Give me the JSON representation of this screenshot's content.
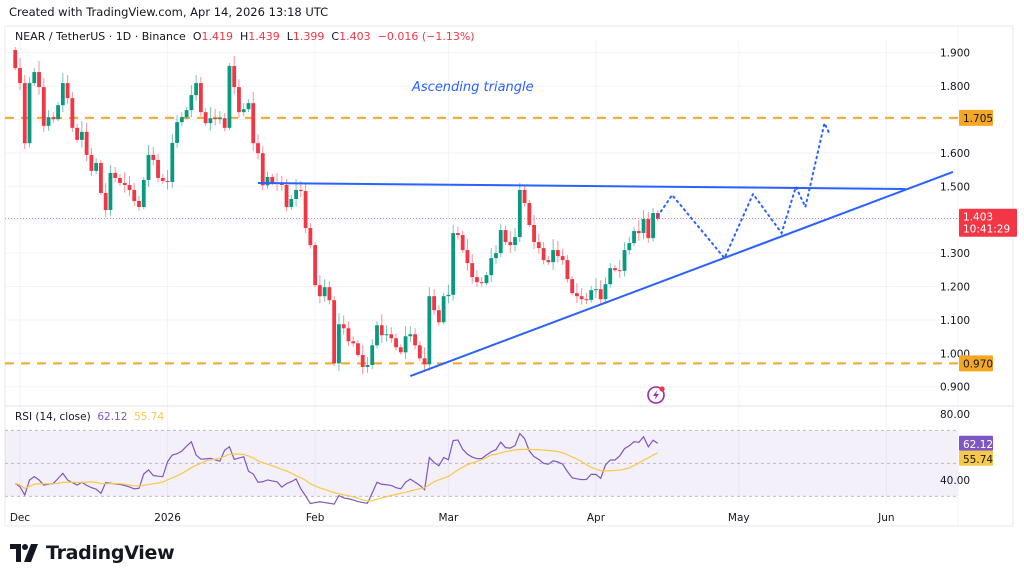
{
  "header": {
    "created": "Created with TradingView.com, Apr 14, 2026 13:18 UTC"
  },
  "legend": {
    "symbol": "NEAR / TetherUS · 1D · Binance",
    "o_label": "O",
    "o": "1.419",
    "h_label": "H",
    "h": "1.439",
    "l_label": "L",
    "l": "1.399",
    "c_label": "C",
    "c": "1.403",
    "change": "−0.016 (−1.13%)"
  },
  "rsi_legend": {
    "label": "RSI (14, close)",
    "value": "62.12",
    "ma_value": "55.74"
  },
  "annotation": {
    "text": "Ascending triangle"
  },
  "price_axis": {
    "ticks": [
      "1.900",
      "1.800",
      "1.600",
      "1.500",
      "1.300",
      "1.200",
      "1.100",
      "1.000",
      "0.900"
    ],
    "tick_values": [
      1.9,
      1.8,
      1.6,
      1.5,
      1.3,
      1.2,
      1.1,
      1.0,
      0.9
    ],
    "resistance_tag": "1.705",
    "support_tag": "0.970",
    "last_price_tag": "1.403",
    "countdown": "10:41:29"
  },
  "rsi_axis": {
    "ticks": [
      "80.00",
      "40.00"
    ],
    "tick_values": [
      80,
      40
    ],
    "rsi_tag": "62.12",
    "ma_tag": "55.74",
    "bands": [
      70,
      50,
      30
    ]
  },
  "time_axis": {
    "labels": [
      "Dec",
      "2026",
      "Feb",
      "Mar",
      "Apr",
      "May",
      "Jun"
    ],
    "dates": [
      "2025-12-01",
      "2026-01-01",
      "2026-02-01",
      "2026-03-01",
      "2026-04-01",
      "2026-05-01",
      "2026-06-01"
    ]
  },
  "colors": {
    "up": "#089981",
    "down": "#f23645",
    "level": "#f5a623",
    "trendline": "#2962ff",
    "rsi": "#7e57c2",
    "rsi_ma": "#f7c948",
    "last_price": "#f23645"
  },
  "levels": {
    "resistance": 1.705,
    "support": 0.97,
    "last_price": 1.403
  },
  "chart_data": {
    "type": "candlestick",
    "symbol": "NEAR / TetherUS",
    "interval": "1D",
    "last_date": "2026-04-14",
    "first_open": 1.908,
    "closes": [
      1.854,
      1.809,
      1.629,
      1.809,
      1.842,
      1.797,
      1.681,
      1.707,
      1.701,
      1.743,
      1.809,
      1.764,
      1.675,
      1.639,
      1.663,
      1.594,
      1.546,
      1.57,
      1.48,
      1.429,
      1.54,
      1.525,
      1.51,
      1.504,
      1.489,
      1.456,
      1.438,
      1.519,
      1.594,
      1.579,
      1.525,
      1.516,
      1.513,
      1.63,
      1.692,
      1.707,
      1.728,
      1.773,
      1.809,
      1.722,
      1.689,
      1.704,
      1.701,
      1.704,
      1.675,
      1.86,
      1.797,
      1.722,
      1.731,
      1.749,
      1.629,
      1.599,
      1.503,
      1.528,
      1.51,
      1.507,
      1.504,
      1.438,
      1.462,
      1.489,
      1.486,
      1.375,
      1.324,
      1.204,
      1.171,
      1.198,
      1.159,
      0.97,
      1.087,
      1.075,
      1.036,
      1.03,
      0.995,
      0.959,
      0.965,
      1.024,
      1.084,
      1.054,
      1.057,
      1.045,
      1.018,
      1.003,
      1.051,
      1.057,
      1.024,
      0.985,
      0.967,
      1.171,
      1.129,
      1.093,
      1.171,
      1.175,
      1.36,
      1.354,
      1.309,
      1.27,
      1.228,
      1.213,
      1.21,
      1.234,
      1.285,
      1.3,
      1.369,
      1.333,
      1.324,
      1.348,
      1.489,
      1.45,
      1.384,
      1.333,
      1.315,
      1.279,
      1.273,
      1.309,
      1.291,
      1.279,
      1.222,
      1.18,
      1.171,
      1.162,
      1.16,
      1.189,
      1.192,
      1.162,
      1.207,
      1.255,
      1.249,
      1.247,
      1.309,
      1.33,
      1.366,
      1.36,
      1.402,
      1.345,
      1.42,
      1.403
    ],
    "rsi": [
      37.8,
      35.8,
      30.8,
      39.9,
      41.9,
      39.9,
      36.8,
      37.3,
      37.8,
      40.8,
      43.9,
      39.9,
      38.3,
      36.8,
      38.5,
      36.6,
      35.3,
      34.3,
      31.8,
      38.3,
      37.9,
      37.5,
      37.2,
      36.5,
      35.7,
      34.5,
      34.8,
      43.5,
      46,
      42.6,
      42.2,
      41.9,
      51,
      55,
      55.8,
      57.4,
      60.4,
      63,
      55,
      52.5,
      52.7,
      53,
      52.1,
      51.3,
      58,
      60,
      52.4,
      53.2,
      54,
      45.2,
      43.5,
      38.5,
      38.8,
      39.9,
      39.3,
      38.8,
      35.6,
      37.7,
      38.9,
      40.5,
      34.5,
      30.2,
      25.6,
      26.2,
      26.7,
      26.2,
      25.8,
      25.3,
      30.4,
      29,
      28.5,
      27.8,
      26.8,
      26.2,
      25.8,
      32,
      38.5,
      37.3,
      37,
      36.6,
      35.2,
      34.5,
      38.5,
      40.4,
      38.5,
      36.6,
      34,
      53.5,
      50.5,
      48.5,
      53.5,
      52.2,
      63.8,
      64.1,
      58.5,
      55.5,
      53.8,
      52.8,
      52.9,
      55,
      57,
      58.3,
      62.8,
      59.5,
      59.2,
      60.8,
      68,
      65,
      57.5,
      54,
      52.3,
      50,
      49.4,
      51.5,
      50.8,
      49.5,
      45,
      41.2,
      40.6,
      40.1,
      40.2,
      43.3,
      43.3,
      40.9,
      49,
      52,
      52,
      54.5,
      58.9,
      60.6,
      63.1,
      62.7,
      66.1,
      60,
      64,
      62.1
    ],
    "rsi_ma_length": 14,
    "drawings": {
      "resistance_line": [
        [
          "2026-01-20",
          1.51
        ],
        [
          "2026-06-05",
          1.492
        ]
      ],
      "support_trendline": [
        [
          "2026-02-21",
          0.932
        ],
        [
          "2026-06-15",
          1.543
        ]
      ],
      "projected_path": [
        [
          "2026-04-14",
          1.411
        ],
        [
          "2026-04-17",
          1.474
        ],
        [
          "2026-04-28",
          1.285
        ],
        [
          "2026-05-04",
          1.477
        ],
        [
          "2026-05-10",
          1.36
        ],
        [
          "2026-05-13",
          1.498
        ],
        [
          "2026-05-15",
          1.438
        ],
        [
          "2026-05-19",
          1.689
        ],
        [
          "2026-05-20",
          1.659
        ]
      ]
    },
    "ylim": [
      0.82,
      1.94
    ],
    "rsi_ylim": [
      20,
      90
    ],
    "grid": true
  },
  "footer": {
    "brand": "TradingView"
  },
  "icons": {
    "alert": "lightning-bolt-icon"
  }
}
